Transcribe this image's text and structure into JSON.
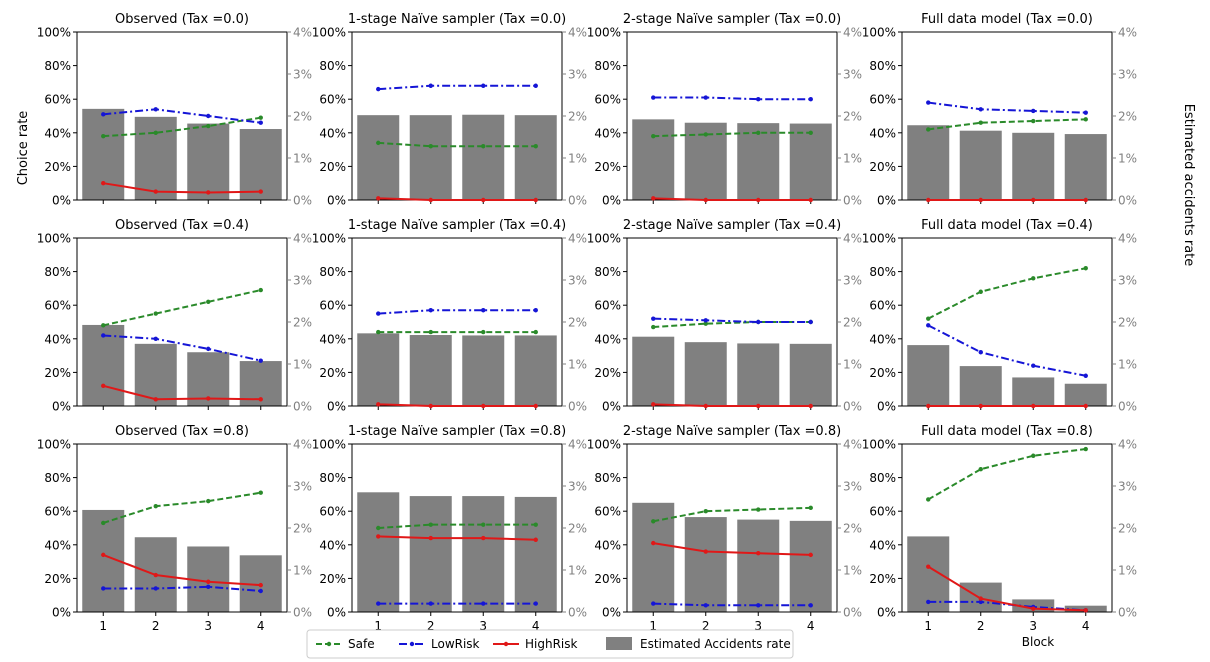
{
  "figure": {
    "left_axis_label": "Choice rate",
    "right_axis_label": "Estimated accidents rate",
    "x_axis_label": "Block"
  },
  "legend": {
    "items": [
      {
        "key": "safe",
        "label": "Safe",
        "color": "#2a8a2a"
      },
      {
        "key": "lowrisk",
        "label": "LowRisk",
        "color": "#1515d6"
      },
      {
        "key": "highrisk",
        "label": "HighRisk",
        "color": "#e01818"
      },
      {
        "key": "accidents",
        "label": "Estimated Accidents rate",
        "color": "#808080"
      }
    ]
  },
  "chart_data": [
    {
      "type": "bar+line",
      "title": "Observed (Tax =0.0)",
      "categories": [
        "1",
        "2",
        "3",
        "4"
      ],
      "ylim_left": [
        0,
        100
      ],
      "ylim_right": [
        0,
        4
      ],
      "series": [
        {
          "name": "Safe",
          "axis": "left",
          "values": [
            38,
            40,
            44,
            49
          ]
        },
        {
          "name": "LowRisk",
          "axis": "left",
          "values": [
            51,
            54,
            50,
            46
          ]
        },
        {
          "name": "HighRisk",
          "axis": "left",
          "values": [
            10,
            5,
            4.5,
            5
          ]
        },
        {
          "name": "Estimated Accidents rate",
          "axis": "right",
          "values": [
            2.17,
            1.98,
            1.82,
            1.69
          ]
        }
      ]
    },
    {
      "type": "bar+line",
      "title": "1-stage Naïve sampler (Tax =0.0)",
      "categories": [
        "1",
        "2",
        "3",
        "4"
      ],
      "ylim_left": [
        0,
        100
      ],
      "ylim_right": [
        0,
        4
      ],
      "series": [
        {
          "name": "Safe",
          "axis": "left",
          "values": [
            34,
            32,
            32,
            32
          ]
        },
        {
          "name": "LowRisk",
          "axis": "left",
          "values": [
            66,
            68,
            68,
            68
          ]
        },
        {
          "name": "HighRisk",
          "axis": "left",
          "values": [
            1,
            0,
            0,
            0
          ]
        },
        {
          "name": "Estimated Accidents rate",
          "axis": "right",
          "values": [
            2.02,
            2.02,
            2.03,
            2.02
          ]
        }
      ]
    },
    {
      "type": "bar+line",
      "title": "2-stage Naïve sampler (Tax =0.0)",
      "categories": [
        "1",
        "2",
        "3",
        "4"
      ],
      "ylim_left": [
        0,
        100
      ],
      "ylim_right": [
        0,
        4
      ],
      "series": [
        {
          "name": "Safe",
          "axis": "left",
          "values": [
            38,
            39,
            40,
            40
          ]
        },
        {
          "name": "LowRisk",
          "axis": "left",
          "values": [
            61,
            61,
            60,
            60
          ]
        },
        {
          "name": "HighRisk",
          "axis": "left",
          "values": [
            1,
            0,
            0,
            0
          ]
        },
        {
          "name": "Estimated Accidents rate",
          "axis": "right",
          "values": [
            1.92,
            1.84,
            1.83,
            1.82
          ]
        }
      ]
    },
    {
      "type": "bar+line",
      "title": "Full data model (Tax =0.0)",
      "categories": [
        "1",
        "2",
        "3",
        "4"
      ],
      "ylim_left": [
        0,
        100
      ],
      "ylim_right": [
        0,
        4
      ],
      "series": [
        {
          "name": "Safe",
          "axis": "left",
          "values": [
            42,
            46,
            47,
            48
          ]
        },
        {
          "name": "LowRisk",
          "axis": "left",
          "values": [
            58,
            54,
            53,
            52
          ]
        },
        {
          "name": "HighRisk",
          "axis": "left",
          "values": [
            0,
            0,
            0,
            0
          ]
        },
        {
          "name": "Estimated Accidents rate",
          "axis": "right",
          "values": [
            1.78,
            1.65,
            1.6,
            1.57
          ]
        }
      ]
    },
    {
      "type": "bar+line",
      "title": "Observed (Tax =0.4)",
      "categories": [
        "1",
        "2",
        "3",
        "4"
      ],
      "ylim_left": [
        0,
        100
      ],
      "ylim_right": [
        0,
        4
      ],
      "series": [
        {
          "name": "Safe",
          "axis": "left",
          "values": [
            48,
            55,
            62,
            69
          ]
        },
        {
          "name": "LowRisk",
          "axis": "left",
          "values": [
            42,
            40,
            34,
            27
          ]
        },
        {
          "name": "HighRisk",
          "axis": "left",
          "values": [
            12,
            4,
            4.5,
            4
          ]
        },
        {
          "name": "Estimated Accidents rate",
          "axis": "right",
          "values": [
            1.93,
            1.48,
            1.28,
            1.07
          ]
        }
      ]
    },
    {
      "type": "bar+line",
      "title": "1-stage Naïve sampler (Tax =0.4)",
      "categories": [
        "1",
        "2",
        "3",
        "4"
      ],
      "ylim_left": [
        0,
        100
      ],
      "ylim_right": [
        0,
        4
      ],
      "series": [
        {
          "name": "Safe",
          "axis": "left",
          "values": [
            44,
            44,
            44,
            44
          ]
        },
        {
          "name": "LowRisk",
          "axis": "left",
          "values": [
            55,
            57,
            57,
            57
          ]
        },
        {
          "name": "HighRisk",
          "axis": "left",
          "values": [
            1,
            0,
            0,
            0
          ]
        },
        {
          "name": "Estimated Accidents rate",
          "axis": "right",
          "values": [
            1.73,
            1.69,
            1.68,
            1.68
          ]
        }
      ]
    },
    {
      "type": "bar+line",
      "title": "2-stage Naïve sampler (Tax =0.4)",
      "categories": [
        "1",
        "2",
        "3",
        "4"
      ],
      "ylim_left": [
        0,
        100
      ],
      "ylim_right": [
        0,
        4
      ],
      "series": [
        {
          "name": "Safe",
          "axis": "left",
          "values": [
            47,
            49,
            50,
            50
          ]
        },
        {
          "name": "LowRisk",
          "axis": "left",
          "values": [
            52,
            51,
            50,
            50
          ]
        },
        {
          "name": "HighRisk",
          "axis": "left",
          "values": [
            1,
            0,
            0,
            0
          ]
        },
        {
          "name": "Estimated Accidents rate",
          "axis": "right",
          "values": [
            1.65,
            1.52,
            1.49,
            1.48
          ]
        }
      ]
    },
    {
      "type": "bar+line",
      "title": "Full data model (Tax =0.4)",
      "categories": [
        "1",
        "2",
        "3",
        "4"
      ],
      "ylim_left": [
        0,
        100
      ],
      "ylim_right": [
        0,
        4
      ],
      "series": [
        {
          "name": "Safe",
          "axis": "left",
          "values": [
            52,
            68,
            76,
            82
          ]
        },
        {
          "name": "LowRisk",
          "axis": "left",
          "values": [
            48,
            32,
            24,
            18
          ]
        },
        {
          "name": "HighRisk",
          "axis": "left",
          "values": [
            0,
            0,
            0,
            0
          ]
        },
        {
          "name": "Estimated Accidents rate",
          "axis": "right",
          "values": [
            1.45,
            0.95,
            0.68,
            0.53
          ]
        }
      ]
    },
    {
      "type": "bar+line",
      "title": "Observed (Tax =0.8)",
      "categories": [
        "1",
        "2",
        "3",
        "4"
      ],
      "ylim_left": [
        0,
        100
      ],
      "ylim_right": [
        0,
        4
      ],
      "series": [
        {
          "name": "Safe",
          "axis": "left",
          "values": [
            53,
            63,
            66,
            71
          ]
        },
        {
          "name": "LowRisk",
          "axis": "left",
          "values": [
            14,
            14,
            15,
            12.5
          ]
        },
        {
          "name": "HighRisk",
          "axis": "left",
          "values": [
            34,
            22,
            18,
            16
          ]
        },
        {
          "name": "Estimated Accidents rate",
          "axis": "right",
          "values": [
            2.43,
            1.78,
            1.56,
            1.35
          ]
        }
      ]
    },
    {
      "type": "bar+line",
      "title": "1-stage Naïve sampler (Tax =0.8)",
      "categories": [
        "1",
        "2",
        "3",
        "4"
      ],
      "ylim_left": [
        0,
        100
      ],
      "ylim_right": [
        0,
        4
      ],
      "series": [
        {
          "name": "Safe",
          "axis": "left",
          "values": [
            50,
            52,
            52,
            52
          ]
        },
        {
          "name": "LowRisk",
          "axis": "left",
          "values": [
            5,
            5,
            5,
            5
          ]
        },
        {
          "name": "HighRisk",
          "axis": "left",
          "values": [
            45,
            44,
            44,
            43
          ]
        },
        {
          "name": "Estimated Accidents rate",
          "axis": "right",
          "values": [
            2.85,
            2.76,
            2.76,
            2.74
          ]
        }
      ]
    },
    {
      "type": "bar+line",
      "title": "2-stage Naïve sampler (Tax =0.8)",
      "categories": [
        "1",
        "2",
        "3",
        "4"
      ],
      "ylim_left": [
        0,
        100
      ],
      "ylim_right": [
        0,
        4
      ],
      "series": [
        {
          "name": "Safe",
          "axis": "left",
          "values": [
            54,
            60,
            61,
            62
          ]
        },
        {
          "name": "LowRisk",
          "axis": "left",
          "values": [
            5,
            4,
            4,
            4
          ]
        },
        {
          "name": "HighRisk",
          "axis": "left",
          "values": [
            41,
            36,
            35,
            34
          ]
        },
        {
          "name": "Estimated Accidents rate",
          "axis": "right",
          "values": [
            2.6,
            2.26,
            2.2,
            2.17
          ]
        }
      ]
    },
    {
      "type": "bar+line",
      "title": "Full data model (Tax =0.8)",
      "categories": [
        "1",
        "2",
        "3",
        "4"
      ],
      "ylim_left": [
        0,
        100
      ],
      "ylim_right": [
        0,
        4
      ],
      "series": [
        {
          "name": "Safe",
          "axis": "left",
          "values": [
            67,
            85,
            93,
            97
          ]
        },
        {
          "name": "LowRisk",
          "axis": "left",
          "values": [
            6,
            6,
            3,
            1
          ]
        },
        {
          "name": "HighRisk",
          "axis": "left",
          "values": [
            27,
            8,
            2,
            1
          ]
        },
        {
          "name": "Estimated Accidents rate",
          "axis": "right",
          "values": [
            1.8,
            0.7,
            0.3,
            0.15
          ]
        }
      ]
    }
  ]
}
